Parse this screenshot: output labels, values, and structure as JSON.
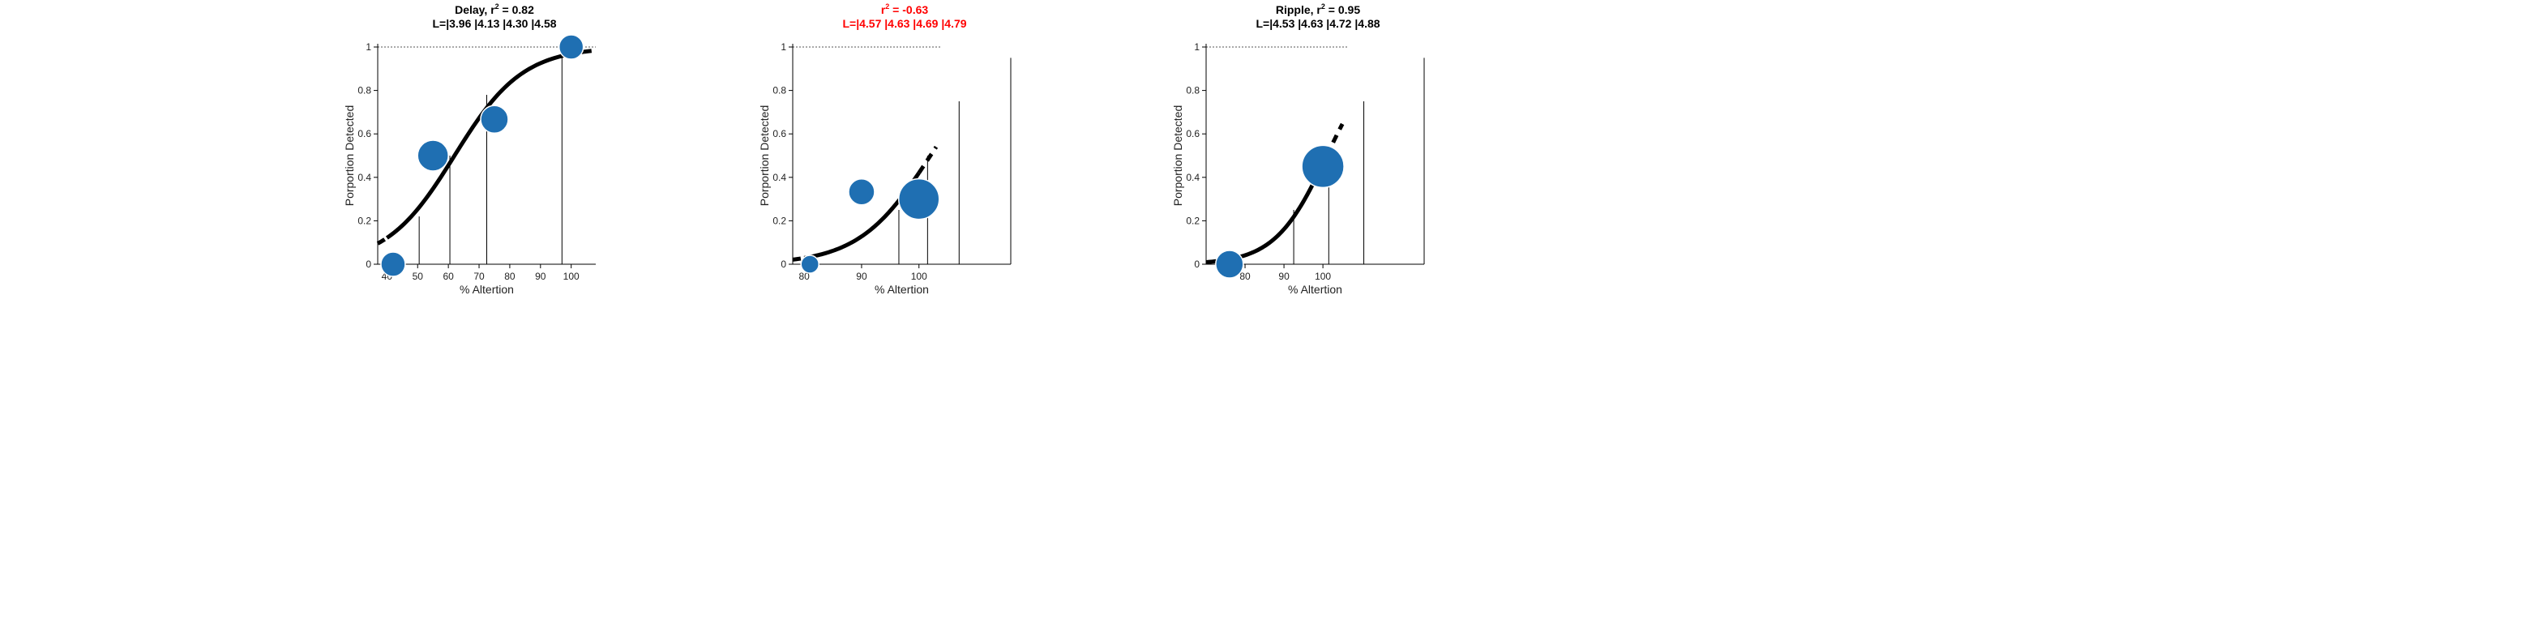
{
  "chart_data": [
    {
      "type": "scatter",
      "title_prefix": "Delay, ",
      "r2_value": "0.82",
      "subtitle": "L=|3.96 |4.13 |4.30 |4.58",
      "title_color": "#000000",
      "xlabel": "% Altertion",
      "ylabel": "Porportion Detected",
      "xlim": [
        37,
        108
      ],
      "ylim": [
        0,
        1
      ],
      "xticks": [
        40,
        50,
        60,
        70,
        80,
        90,
        100
      ],
      "yticks": [
        0,
        0.2,
        0.4,
        0.6,
        0.8,
        1
      ],
      "points": [
        {
          "x": 42,
          "y": 0.0,
          "weight": 0.45
        },
        {
          "x": 55,
          "y": 0.5,
          "weight": 0.65
        },
        {
          "x": 75,
          "y": 0.667,
          "weight": 0.55
        },
        {
          "x": 100,
          "y": 1.0,
          "weight": 0.45
        }
      ],
      "fit": {
        "midpoint": 62,
        "slope": 0.09,
        "x_range": [
          37,
          108
        ],
        "data_range": [
          40,
          104
        ]
      },
      "thresholds": [
        {
          "x": 50.5,
          "y": 0.22
        },
        {
          "x": 60.5,
          "y": 0.5
        },
        {
          "x": 72.5,
          "y": 0.78
        },
        {
          "x": 97,
          "y": 0.95
        }
      ],
      "marker_color": "#1f6fb2"
    },
    {
      "type": "scatter",
      "title_prefix": "",
      "r2_value": "-0.63",
      "subtitle": "L=|4.57 |4.63 |4.69 |4.79",
      "title_color": "#ff0000",
      "xlabel": "% Altertion",
      "ylabel": "Porportion Detected",
      "xlim": [
        78,
        116
      ],
      "ylim": [
        0,
        1
      ],
      "xticks": [
        80,
        90,
        100
      ],
      "yticks": [
        0,
        0.2,
        0.4,
        0.6,
        0.8,
        1
      ],
      "points": [
        {
          "x": 81,
          "y": 0.0,
          "weight": 0.25
        },
        {
          "x": 90,
          "y": 0.333,
          "weight": 0.5
        },
        {
          "x": 100,
          "y": 0.3,
          "weight": 0.95
        }
      ],
      "fit": {
        "midpoint": 102,
        "slope": 0.16,
        "x_range": [
          78,
          103
        ],
        "data_range": [
          80,
          100
        ]
      },
      "thresholds": [
        {
          "x": 96.5,
          "y": 0.25
        },
        {
          "x": 101.5,
          "y": 0.5
        },
        {
          "x": 107,
          "y": 0.75
        },
        {
          "x": 116,
          "y": 0.95
        }
      ],
      "marker_color": "#1f6fb2"
    },
    {
      "type": "scatter",
      "title_prefix": "Ripple, ",
      "r2_value": "0.95",
      "subtitle": "L=|4.53 |4.63 |4.72 |4.88",
      "title_color": "#000000",
      "xlabel": "% Altertion",
      "ylabel": "Porportion Detected",
      "xlim": [
        70,
        126
      ],
      "ylim": [
        0,
        1
      ],
      "xticks": [
        80,
        90,
        100
      ],
      "yticks": [
        0,
        0.2,
        0.4,
        0.6,
        0.8,
        1
      ],
      "points": [
        {
          "x": 76,
          "y": 0.0,
          "weight": 0.55
        },
        {
          "x": 100,
          "y": 0.45,
          "weight": 1.0
        }
      ],
      "fit": {
        "midpoint": 101,
        "slope": 0.15,
        "x_range": [
          70,
          105
        ],
        "data_range": [
          70,
          101
        ]
      },
      "thresholds": [
        {
          "x": 92.5,
          "y": 0.25
        },
        {
          "x": 101.5,
          "y": 0.5
        },
        {
          "x": 110.5,
          "y": 0.75
        },
        {
          "x": 126,
          "y": 0.95
        }
      ],
      "marker_color": "#1f6fb2"
    }
  ]
}
